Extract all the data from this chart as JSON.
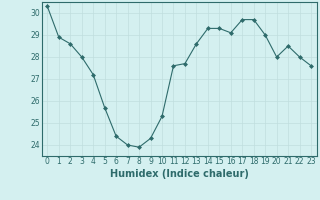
{
  "x": [
    0,
    1,
    2,
    3,
    4,
    5,
    6,
    7,
    8,
    9,
    10,
    11,
    12,
    13,
    14,
    15,
    16,
    17,
    18,
    19,
    20,
    21,
    22,
    23
  ],
  "y": [
    30.3,
    28.9,
    28.6,
    28.0,
    27.2,
    25.7,
    24.4,
    24.0,
    23.9,
    24.3,
    25.3,
    27.6,
    27.7,
    28.6,
    29.3,
    29.3,
    29.1,
    29.7,
    29.7,
    29.0,
    28.0,
    28.5,
    28.0,
    27.6
  ],
  "xlabel": "Humidex (Indice chaleur)",
  "ylim": [
    23.5,
    30.5
  ],
  "xlim": [
    -0.5,
    23.5
  ],
  "yticks": [
    24,
    25,
    26,
    27,
    28,
    29,
    30
  ],
  "xticks": [
    0,
    1,
    2,
    3,
    4,
    5,
    6,
    7,
    8,
    9,
    10,
    11,
    12,
    13,
    14,
    15,
    16,
    17,
    18,
    19,
    20,
    21,
    22,
    23
  ],
  "line_color": "#2e6b6b",
  "marker": "D",
  "marker_size": 2.0,
  "bg_color": "#d4f0f0",
  "grid_color": "#c0dede",
  "tick_label_fontsize": 5.5,
  "xlabel_fontsize": 7.0
}
